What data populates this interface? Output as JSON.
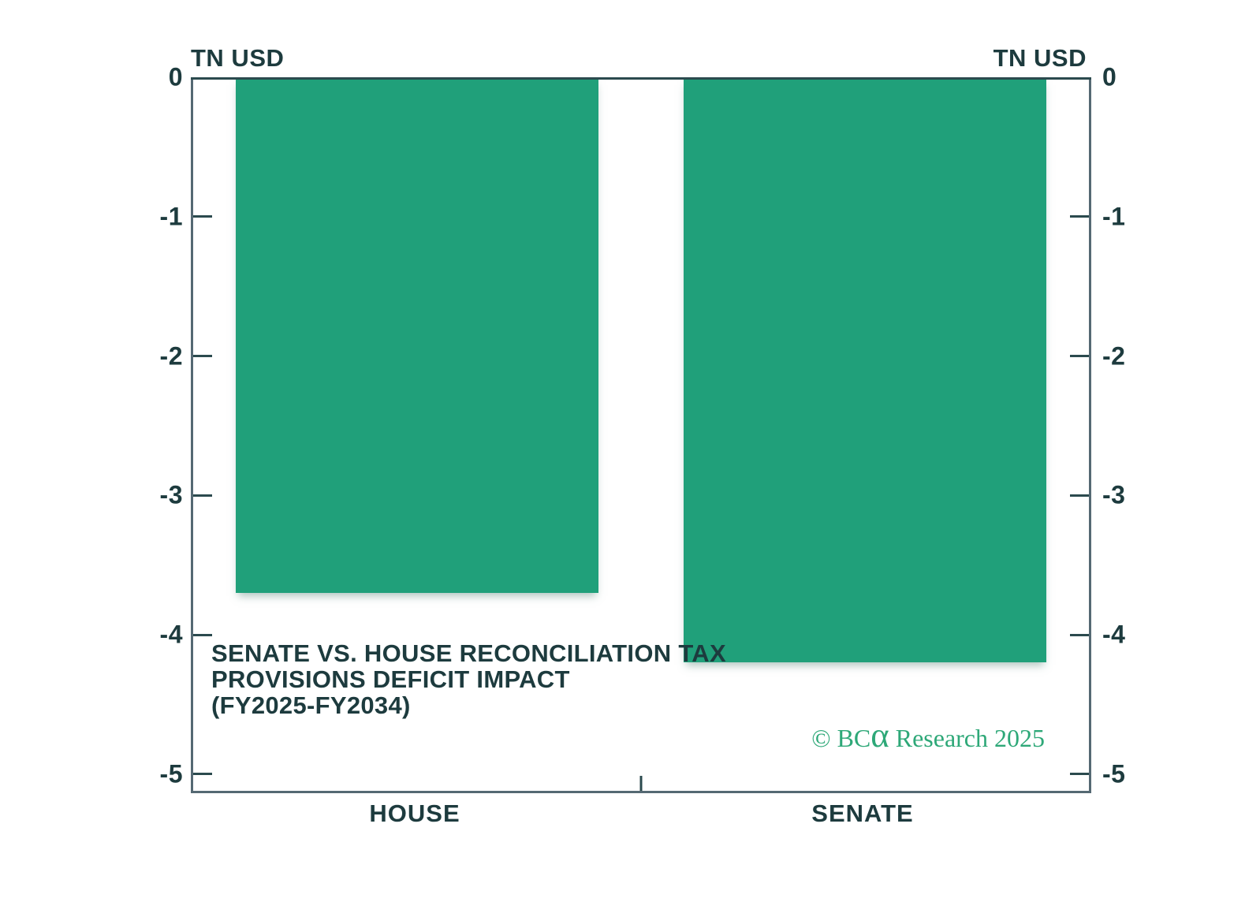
{
  "chart_data": {
    "type": "bar",
    "title": "SENATE VS. HOUSE RECONCILIATION TAX PROVISIONS DEFICIT IMPACT (FY2025-FY2034)",
    "title_lines": [
      "SENATE VS. HOUSE RECONCILIATION TAX",
      "PROVISIONS DEFICIT IMPACT",
      "(FY2025-FY2034)"
    ],
    "categories": [
      "HOUSE",
      "SENATE"
    ],
    "values": [
      -3.7,
      -4.2
    ],
    "unit_left": "TN USD",
    "unit_right": "TN USD",
    "yticks": [
      0,
      -1,
      -2,
      -3,
      -4,
      -5
    ],
    "ylim": [
      0,
      -5.12
    ],
    "bar_color": "#20A07A",
    "grid": "off",
    "legend": "none",
    "copyright": {
      "pre": "© BC",
      "alpha": "α",
      "post": " Research 2025"
    }
  }
}
